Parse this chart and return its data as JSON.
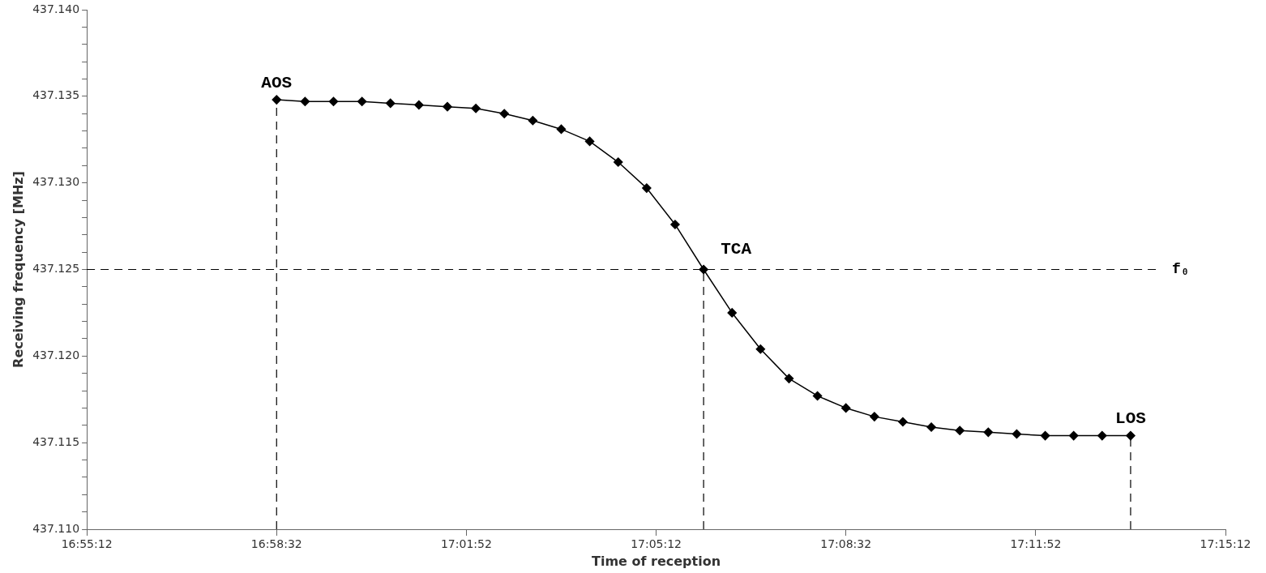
{
  "chart_data": {
    "type": "line",
    "xlabel": "Time of reception",
    "ylabel": "Receiving frequency [MHz]",
    "x": [
      16.97556,
      16.98389,
      16.99222,
      17.00056,
      17.00889,
      17.01722,
      17.02556,
      17.03389,
      17.04222,
      17.05056,
      17.05889,
      17.06722,
      17.07556,
      17.08389,
      17.09222,
      17.10056,
      17.10889,
      17.11722,
      17.12556,
      17.13389,
      17.14222,
      17.15056,
      17.15889,
      17.16722,
      17.17556,
      17.18389,
      17.19222,
      17.20056,
      17.20889,
      17.21722,
      17.22556
    ],
    "series": [
      {
        "color": "#000000",
        "values": [
          437.1348,
          437.1347,
          437.1347,
          437.1347,
          437.1346,
          437.1345,
          437.1344,
          437.1343,
          437.134,
          437.1336,
          437.1331,
          437.1324,
          437.1312,
          437.1297,
          437.1276,
          437.125,
          437.1225,
          437.1204,
          437.1187,
          437.1177,
          437.117,
          437.1165,
          437.1162,
          437.1159,
          437.1157,
          437.1156,
          437.1155,
          437.1154,
          437.1154,
          437.1154,
          437.1154
        ]
      }
    ],
    "xlim": [
      16.92,
      17.25333
    ],
    "xticks": [
      {
        "value": 16.92,
        "label": "16:55:12"
      },
      {
        "value": 16.97556,
        "label": "16:58:32"
      },
      {
        "value": 17.03111,
        "label": "17:01:52"
      },
      {
        "value": 17.08667,
        "label": "17:05:12"
      },
      {
        "value": 17.14222,
        "label": "17:08:32"
      },
      {
        "value": 17.19778,
        "label": "17:11:52"
      },
      {
        "value": 17.25333,
        "label": "17:15:12"
      }
    ],
    "ylim": [
      437.11,
      437.14
    ],
    "yticks": [
      {
        "value": 437.11,
        "label": "437.110"
      },
      {
        "value": 437.111,
        "label": null
      },
      {
        "value": 437.112,
        "label": null
      },
      {
        "value": 437.113,
        "label": null
      },
      {
        "value": 437.114,
        "label": null
      },
      {
        "value": 437.115,
        "label": "437.115"
      },
      {
        "value": 437.116,
        "label": null
      },
      {
        "value": 437.117,
        "label": null
      },
      {
        "value": 437.118,
        "label": null
      },
      {
        "value": 437.119,
        "label": null
      },
      {
        "value": 437.12,
        "label": "437.120"
      },
      {
        "value": 437.121,
        "label": null
      },
      {
        "value": 437.122,
        "label": null
      },
      {
        "value": 437.123,
        "label": null
      },
      {
        "value": 437.124,
        "label": null
      },
      {
        "value": 437.125,
        "label": "437.125"
      },
      {
        "value": 437.126,
        "label": null
      },
      {
        "value": 437.127,
        "label": null
      },
      {
        "value": 437.128,
        "label": null
      },
      {
        "value": 437.129,
        "label": null
      },
      {
        "value": 437.13,
        "label": "437.130"
      },
      {
        "value": 437.131,
        "label": null
      },
      {
        "value": 437.132,
        "label": null
      },
      {
        "value": 437.133,
        "label": null
      },
      {
        "value": 437.134,
        "label": null
      },
      {
        "value": 437.135,
        "label": "437.135"
      },
      {
        "value": 437.136,
        "label": null
      },
      {
        "value": 437.137,
        "label": null
      },
      {
        "value": 437.138,
        "label": null
      },
      {
        "value": 437.139,
        "label": null
      },
      {
        "value": 437.14,
        "label": "437.140"
      }
    ],
    "ref_lines": [
      {
        "axis": "y",
        "value": 437.125,
        "label": "f₀",
        "line_style": "dashed"
      },
      {
        "axis": "x",
        "value": 16.97556,
        "line_style": "dashed"
      },
      {
        "axis": "x",
        "value": 17.10056,
        "line_style": "dashed"
      },
      {
        "axis": "x",
        "value": 17.22556,
        "line_style": "dashed"
      }
    ],
    "annotations": [
      {
        "text": "AOS",
        "x": 16.97556,
        "y": 437.1348
      },
      {
        "text": "TCA",
        "x": 17.10056,
        "y": 437.125
      },
      {
        "text": "LOS",
        "x": 17.22556,
        "y": 437.1154
      }
    ],
    "grid": false,
    "legend": false,
    "marker": "diamond",
    "line_style": "solid"
  }
}
